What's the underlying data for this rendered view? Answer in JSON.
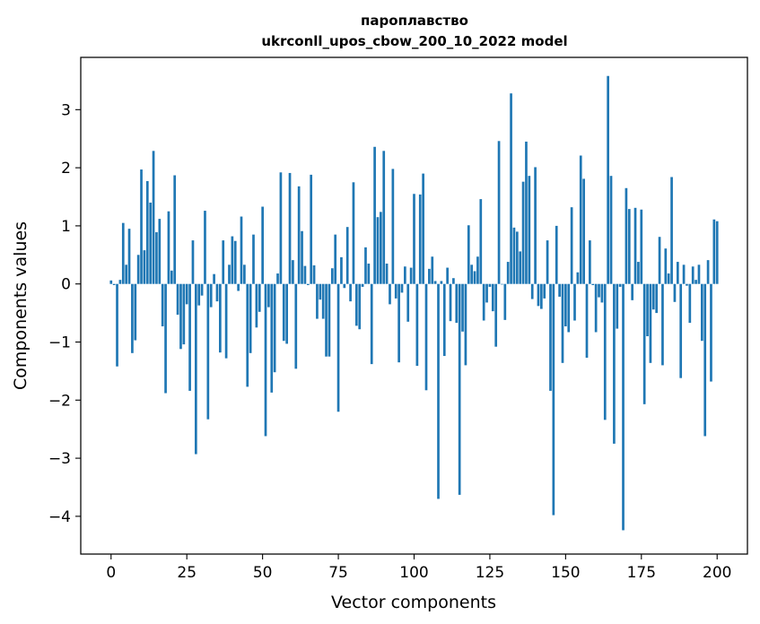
{
  "chart_data": {
    "type": "bar",
    "title": "пароплавство",
    "subtitle": "ukrconll_upos_cbow_200_10_2022 model",
    "xlabel": "Vector components",
    "ylabel": "Components values",
    "xlim": [
      -10,
      210
    ],
    "ylim": [
      -4.65,
      3.9
    ],
    "xticks": [
      0,
      25,
      50,
      75,
      100,
      125,
      150,
      175,
      200
    ],
    "yticks": [
      -4,
      -3,
      -2,
      -1,
      0,
      1,
      2,
      3
    ],
    "bar_color": "#1f77b4",
    "values": [
      0.06,
      -0.02,
      -1.42,
      0.07,
      1.05,
      0.33,
      0.95,
      -1.19,
      -0.97,
      0.5,
      1.97,
      0.58,
      1.77,
      1.4,
      2.29,
      0.89,
      1.12,
      -0.73,
      -1.88,
      1.25,
      0.23,
      1.87,
      -0.53,
      -1.12,
      -1.04,
      -0.35,
      -1.84,
      0.75,
      -2.93,
      -0.37,
      -0.2,
      1.26,
      -2.33,
      -0.4,
      0.17,
      -0.3,
      -1.18,
      0.75,
      -1.28,
      0.33,
      0.82,
      0.74,
      -0.12,
      1.16,
      0.33,
      -1.77,
      -1.19,
      0.85,
      -0.75,
      -0.48,
      1.33,
      -2.62,
      -0.4,
      -1.87,
      -1.52,
      0.18,
      1.92,
      -0.98,
      -1.03,
      1.91,
      0.41,
      -1.46,
      1.68,
      0.91,
      0.31,
      -0.02,
      1.88,
      0.32,
      -0.6,
      -0.27,
      -0.6,
      -1.25,
      -1.25,
      0.27,
      0.85,
      -2.2,
      0.46,
      -0.07,
      0.98,
      -0.3,
      1.75,
      -0.72,
      -0.78,
      -0.05,
      0.63,
      0.35,
      -1.38,
      2.36,
      1.15,
      1.24,
      2.29,
      0.35,
      -0.35,
      1.98,
      -0.25,
      -1.35,
      -0.15,
      0.3,
      -0.65,
      0.28,
      1.55,
      -1.41,
      1.54,
      1.9,
      -1.83,
      0.26,
      0.47,
      0.05,
      -3.7,
      0.05,
      -1.24,
      0.28,
      -0.64,
      0.1,
      -0.67,
      -3.63,
      -0.82,
      -1.4,
      1.01,
      0.33,
      0.22,
      0.47,
      1.46,
      -0.63,
      -0.32,
      -0.05,
      -0.47,
      -1.08,
      2.46,
      -0.01,
      -0.62,
      0.38,
      3.28,
      0.97,
      0.9,
      0.56,
      1.76,
      2.45,
      1.86,
      -0.26,
      2.01,
      -0.38,
      -0.43,
      -0.25,
      0.75,
      -1.84,
      -3.98,
      1.0,
      -0.22,
      -1.36,
      -0.73,
      -0.83,
      1.32,
      -0.63,
      0.2,
      2.21,
      1.81,
      -1.27,
      0.75,
      -0.02,
      -0.83,
      -0.23,
      -0.32,
      -2.34,
      3.58,
      1.86,
      -2.75,
      -0.77,
      -0.05,
      -4.24,
      1.65,
      1.29,
      -0.28,
      1.31,
      0.38,
      1.28,
      -2.07,
      -0.9,
      -1.36,
      -0.44,
      -0.5,
      0.81,
      -1.4,
      0.61,
      0.18,
      1.84,
      -0.31,
      0.38,
      -1.62,
      0.33,
      -0.03,
      -0.67,
      0.3,
      0.07,
      0.33,
      -0.98,
      -2.62,
      0.41,
      -1.68,
      1.11,
      1.08
    ]
  }
}
